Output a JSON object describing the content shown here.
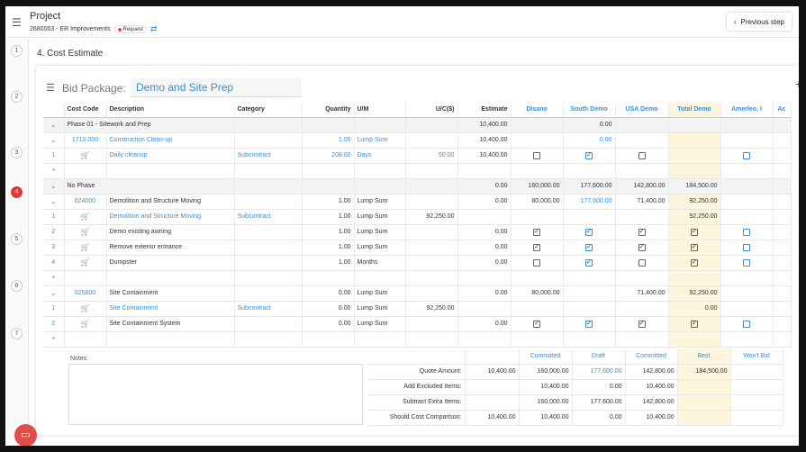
{
  "header": {
    "title": "Project",
    "subtitle": "2680003 - ER Improvements",
    "badge": "Request",
    "prev_label": "Previous step"
  },
  "steps": [
    "1",
    "2",
    "3",
    "4",
    "5",
    "6",
    "7"
  ],
  "section_title": "4. Cost Estimate",
  "bid_package": {
    "label": "Bid Package:",
    "value": "Demo and Site Prep"
  },
  "columns": [
    "Cost Code",
    "Description",
    "Category",
    "Quantity",
    "U/M",
    "U/C($)",
    "Estimate",
    "Disano",
    "South Demo",
    "USA Demo",
    "Total Demo",
    "Amerleo, I",
    "Ac"
  ],
  "rows": [
    {
      "t": "grp",
      "v": [
        "",
        "Phase 01 - Sitework and Prep",
        "",
        "",
        "",
        "",
        "10,400.00",
        "",
        "0.00",
        "",
        "",
        "",
        ""
      ]
    },
    {
      "t": "sub",
      "v": [
        "",
        "1710.000",
        "Construction Clean-up",
        "",
        "1.00",
        "Lump Sum",
        "",
        "10,400.00",
        "",
        "0.00",
        "",
        "",
        "",
        ""
      ]
    },
    {
      "t": "item",
      "v": [
        "1",
        "",
        "Daily cleanup",
        "Subcontract",
        "208.00",
        "Days",
        "50.00",
        "10,400.00",
        "u",
        "c",
        "u",
        "",
        "b"
      ]
    },
    {
      "t": "add",
      "v": [
        "+"
      ]
    },
    {
      "t": "grp",
      "v": [
        "",
        "No Phase",
        "",
        "",
        "",
        "",
        "0.00",
        "160,000.00",
        "177,600.00",
        "142,800.00",
        "184,500.00",
        "",
        ""
      ]
    },
    {
      "t": "sub",
      "v": [
        "",
        "024000",
        "Demolition and Structure Moving",
        "",
        "1.00",
        "Lump Sum",
        "",
        "0.00",
        "80,000.00",
        "177,600.00",
        "71,400.00",
        "92,250.00",
        "",
        ""
      ]
    },
    {
      "t": "item",
      "v": [
        "1",
        "",
        "Demolition and Structure Moving",
        "Subcontract",
        "1.00",
        "Lump Sum",
        "92,250.00",
        "",
        "",
        "",
        "",
        "92,250.00",
        ""
      ]
    },
    {
      "t": "item",
      "v": [
        "2",
        "",
        "Demo existing awning",
        "",
        "1.00",
        "Lump Sum",
        "",
        "0.00",
        "c",
        "c",
        "c",
        "c",
        "b"
      ]
    },
    {
      "t": "item",
      "v": [
        "3",
        "",
        "Remove exterior entrance",
        "",
        "1.00",
        "Lump Sum",
        "",
        "0.00",
        "c",
        "c",
        "c",
        "c",
        "b"
      ]
    },
    {
      "t": "item",
      "v": [
        "4",
        "",
        "Dumpster",
        "",
        "1.00",
        "Months",
        "",
        "0.00",
        "u",
        "c",
        "u",
        "c",
        "b"
      ]
    },
    {
      "t": "add",
      "v": [
        "+"
      ]
    },
    {
      "t": "sub",
      "v": [
        "",
        "025600",
        "Site Containment",
        "",
        "0.00",
        "Lump Sum",
        "",
        "0.00",
        "80,000.00",
        "",
        "71,400.00",
        "92,250.00",
        "",
        ""
      ]
    },
    {
      "t": "item",
      "v": [
        "1",
        "",
        "Site Containment",
        "Subcontract",
        "0.00",
        "Lump Sum",
        "92,250.00",
        "",
        "",
        "",
        "",
        "0.00",
        ""
      ]
    },
    {
      "t": "item",
      "v": [
        "2",
        "",
        "Site Containment System",
        "",
        "0.00",
        "Lump Sum",
        "",
        "0.00",
        "c",
        "c",
        "c",
        "c",
        "b"
      ]
    },
    {
      "t": "add",
      "v": [
        "+"
      ]
    }
  ],
  "notes_label": "Notes:",
  "summary": {
    "header": [
      "",
      "",
      "Committed",
      "Draft",
      "Committed",
      "Best",
      "Won't Bid"
    ],
    "rows": [
      [
        "Quote Amount:",
        "10,400.00",
        "160,000.00",
        "177,600.00",
        "142,800.00",
        "184,500.00",
        ""
      ],
      [
        "Add Excluded Items:",
        "",
        "10,400.00",
        "0.00",
        "10,400.00",
        "",
        ""
      ],
      [
        "Subtract Extra Items:",
        "",
        "160,000.00",
        "177,600.00",
        "142,800.00",
        "",
        ""
      ],
      [
        "Should Cost Comparison:",
        "10,400.00",
        "10,400.00",
        "0.00",
        "10,400.00",
        "",
        ""
      ]
    ]
  },
  "colors": {
    "accent": "#3a8fd6",
    "highlight": "#fdf6dc",
    "active_step": "#d93b3b"
  }
}
